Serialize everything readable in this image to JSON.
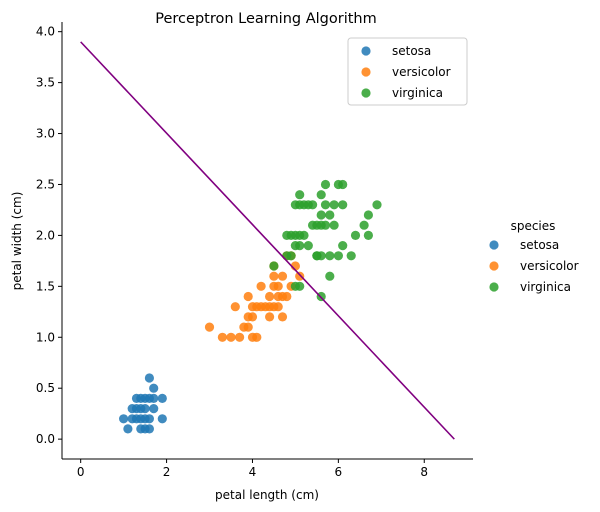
{
  "chart_data": {
    "type": "scatter",
    "title": "Perceptron Learning Algorithm",
    "xlabel": "petal length (cm)",
    "ylabel": "petal width (cm)",
    "xlim": [
      -0.435,
      9.135
    ],
    "ylim": [
      -0.195,
      4.095
    ],
    "xticks": [
      0,
      2,
      4,
      6,
      8
    ],
    "yticks": [
      0.0,
      0.5,
      1.0,
      1.5,
      2.0,
      2.5,
      3.0,
      3.5,
      4.0
    ],
    "ytick_labels": [
      "0.0",
      "0.5",
      "1.0",
      "1.5",
      "2.0",
      "2.5",
      "3.0",
      "3.5",
      "4.0"
    ],
    "grid": false,
    "inner_legend": {
      "placement": "top-right",
      "entries": [
        "setosa",
        "versicolor",
        "virginica"
      ]
    },
    "outer_legend": {
      "title": "species",
      "placement": "right",
      "entries": [
        "setosa",
        "versicolor",
        "virginica"
      ]
    },
    "decision_line": {
      "x": [
        0.0,
        8.7
      ],
      "y": [
        3.9,
        0.0
      ],
      "color": "#800080"
    },
    "series": [
      {
        "name": "setosa",
        "color": "#1f77b4",
        "points": [
          [
            1.0,
            0.2
          ],
          [
            1.1,
            0.1
          ],
          [
            1.2,
            0.2
          ],
          [
            1.3,
            0.2
          ],
          [
            1.3,
            0.3
          ],
          [
            1.3,
            0.4
          ],
          [
            1.4,
            0.2
          ],
          [
            1.4,
            0.1
          ],
          [
            1.4,
            0.3
          ],
          [
            1.5,
            0.2
          ],
          [
            1.5,
            0.4
          ],
          [
            1.5,
            0.1
          ],
          [
            1.5,
            0.3
          ],
          [
            1.6,
            0.2
          ],
          [
            1.6,
            0.4
          ],
          [
            1.6,
            0.6
          ],
          [
            1.7,
            0.5
          ],
          [
            1.7,
            0.4
          ],
          [
            1.7,
            0.3
          ],
          [
            1.9,
            0.2
          ],
          [
            1.9,
            0.4
          ],
          [
            1.2,
            0.3
          ],
          [
            1.4,
            0.4
          ],
          [
            1.6,
            0.1
          ]
        ]
      },
      {
        "name": "versicolor",
        "color": "#ff7f0e",
        "points": [
          [
            3.0,
            1.1
          ],
          [
            3.3,
            1.0
          ],
          [
            3.5,
            1.0
          ],
          [
            3.6,
            1.3
          ],
          [
            3.7,
            1.0
          ],
          [
            3.8,
            1.1
          ],
          [
            3.9,
            1.1
          ],
          [
            3.9,
            1.2
          ],
          [
            3.9,
            1.4
          ],
          [
            4.0,
            1.0
          ],
          [
            4.0,
            1.3
          ],
          [
            4.0,
            1.2
          ],
          [
            4.1,
            1.0
          ],
          [
            4.1,
            1.3
          ],
          [
            4.2,
            1.3
          ],
          [
            4.2,
            1.5
          ],
          [
            4.3,
            1.3
          ],
          [
            4.4,
            1.4
          ],
          [
            4.4,
            1.2
          ],
          [
            4.4,
            1.3
          ],
          [
            4.5,
            1.5
          ],
          [
            4.5,
            1.3
          ],
          [
            4.5,
            1.6
          ],
          [
            4.6,
            1.5
          ],
          [
            4.6,
            1.3
          ],
          [
            4.6,
            1.4
          ],
          [
            4.7,
            1.4
          ],
          [
            4.7,
            1.6
          ],
          [
            4.7,
            1.2
          ],
          [
            4.8,
            1.4
          ],
          [
            4.8,
            1.8
          ],
          [
            4.9,
            1.5
          ],
          [
            5.0,
            1.7
          ],
          [
            5.1,
            1.6
          ],
          [
            4.5,
            1.7
          ],
          [
            4.9,
            1.8
          ]
        ]
      },
      {
        "name": "virginica",
        "color": "#2ca02c",
        "points": [
          [
            4.5,
            1.7
          ],
          [
            4.8,
            1.8
          ],
          [
            4.9,
            1.8
          ],
          [
            4.9,
            2.0
          ],
          [
            5.0,
            2.0
          ],
          [
            5.0,
            1.5
          ],
          [
            5.1,
            1.5
          ],
          [
            5.0,
            1.9
          ],
          [
            5.1,
            2.0
          ],
          [
            5.1,
            1.9
          ],
          [
            5.1,
            2.3
          ],
          [
            5.1,
            2.4
          ],
          [
            5.2,
            2.3
          ],
          [
            5.2,
            2.0
          ],
          [
            5.3,
            2.3
          ],
          [
            5.3,
            1.9
          ],
          [
            5.4,
            2.1
          ],
          [
            5.4,
            2.3
          ],
          [
            5.5,
            1.8
          ],
          [
            5.5,
            2.1
          ],
          [
            5.5,
            1.8
          ],
          [
            5.6,
            2.4
          ],
          [
            5.6,
            2.2
          ],
          [
            5.6,
            2.1
          ],
          [
            5.6,
            1.4
          ],
          [
            5.6,
            1.8
          ],
          [
            5.7,
            2.5
          ],
          [
            5.7,
            2.3
          ],
          [
            5.7,
            2.1
          ],
          [
            5.8,
            2.2
          ],
          [
            5.8,
            1.8
          ],
          [
            5.8,
            1.6
          ],
          [
            5.9,
            2.3
          ],
          [
            5.9,
            2.1
          ],
          [
            6.0,
            2.5
          ],
          [
            6.0,
            1.8
          ],
          [
            6.1,
            2.3
          ],
          [
            6.1,
            2.5
          ],
          [
            6.1,
            1.9
          ],
          [
            6.3,
            1.8
          ],
          [
            6.4,
            2.0
          ],
          [
            6.6,
            2.1
          ],
          [
            6.7,
            2.2
          ],
          [
            6.7,
            2.0
          ],
          [
            6.9,
            2.3
          ],
          [
            5.0,
            2.3
          ],
          [
            4.8,
            2.0
          ]
        ]
      }
    ]
  }
}
